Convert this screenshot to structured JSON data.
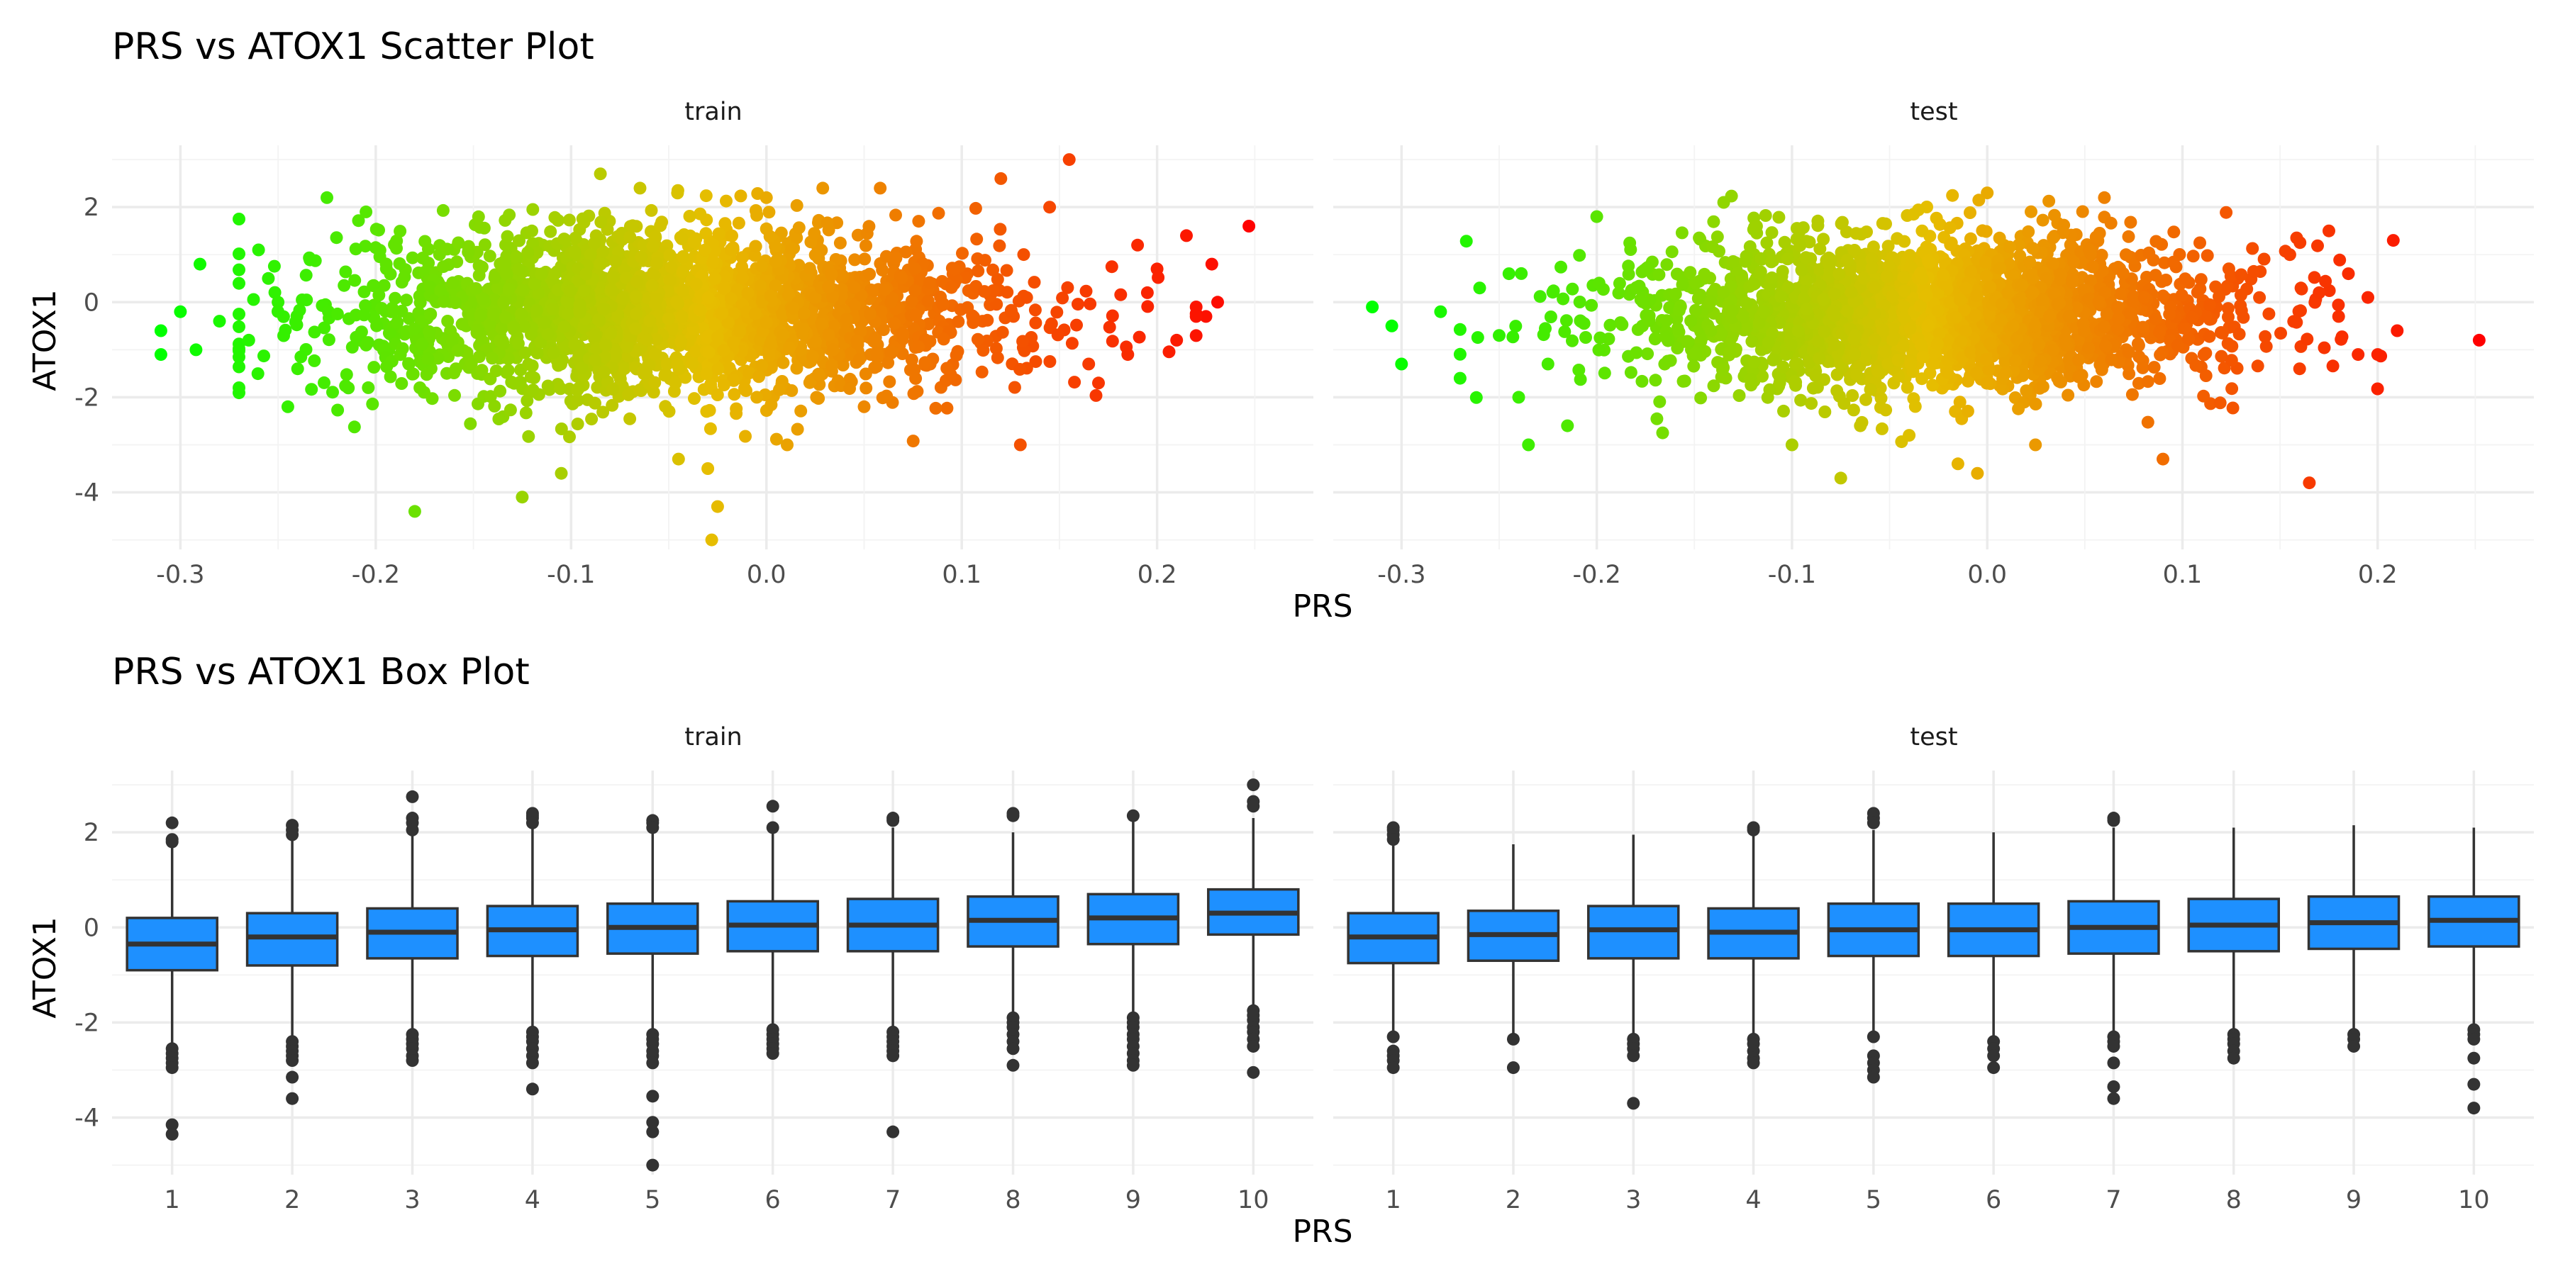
{
  "chart_data": [
    {
      "type": "scatter",
      "title": "PRS vs ATOX1 Scatter Plot",
      "xlabel": "PRS",
      "ylabel": "ATOX1",
      "facets": [
        "train",
        "test"
      ],
      "xlim": [
        -0.335,
        0.28
      ],
      "ylim": [
        -5.2,
        3.3
      ],
      "xticks": [
        -0.3,
        -0.2,
        -0.1,
        0.0,
        0.1,
        0.2
      ],
      "xtick_labels": [
        "-0.3",
        "-0.2",
        "-0.1",
        "0.0",
        "0.1",
        "0.2"
      ],
      "yticks": [
        -4,
        -2,
        0,
        2
      ],
      "ytick_labels": [
        "-4",
        "-2",
        "0",
        "2"
      ],
      "color_gradient": {
        "low": "#00ff00",
        "high": "#ff0000",
        "mapped_to": "PRS"
      },
      "grid": true,
      "legend": "none",
      "clouds": [
        {
          "facet": "train",
          "x_center": -0.05,
          "x_sd": 0.085,
          "y_center": -0.2,
          "y_sd": 0.85
        },
        {
          "facet": "test",
          "x_center": -0.03,
          "x_sd": 0.075,
          "y_center": -0.2,
          "y_sd": 0.8
        }
      ],
      "series": [
        {
          "facet": "train",
          "points": [
            [
              0.247,
              1.6
            ],
            [
              0.231,
              0.0
            ],
            [
              0.225,
              -0.3
            ],
            [
              0.228,
              0.8
            ],
            [
              0.22,
              -0.1
            ],
            [
              0.215,
              1.4
            ],
            [
              0.19,
              1.2
            ],
            [
              0.17,
              -1.7
            ],
            [
              0.165,
              -1.3
            ],
            [
              0.155,
              3.0
            ],
            [
              0.145,
              2.0
            ],
            [
              0.13,
              -3.0
            ],
            [
              0.12,
              2.6
            ],
            [
              0.05,
              -2.2
            ],
            [
              0.0,
              2.2
            ],
            [
              -0.025,
              -4.3
            ],
            [
              -0.028,
              -5.0
            ],
            [
              -0.03,
              -3.5
            ],
            [
              -0.045,
              -3.3
            ],
            [
              -0.085,
              2.7
            ],
            [
              -0.105,
              -3.6
            ],
            [
              -0.125,
              -4.1
            ],
            [
              -0.18,
              -4.4
            ],
            [
              -0.225,
              2.2
            ],
            [
              -0.205,
              1.9
            ],
            [
              -0.26,
              1.1
            ],
            [
              -0.265,
              -0.8
            ],
            [
              -0.27,
              -1.8
            ],
            [
              -0.29,
              0.8
            ],
            [
              -0.292,
              -1.0
            ],
            [
              -0.3,
              -0.2
            ],
            [
              -0.31,
              -0.6
            ],
            [
              -0.31,
              -1.1
            ],
            [
              -0.28,
              -0.4
            ],
            [
              -0.255,
              0.5
            ],
            [
              -0.245,
              -2.2
            ],
            [
              -0.25,
              0.0
            ],
            [
              -0.24,
              -1.4
            ],
            [
              0.22,
              -0.3
            ],
            [
              0.2,
              0.7
            ],
            [
              0.21,
              -0.8
            ],
            [
              0.185,
              -1.1
            ],
            [
              0.195,
              0.2
            ]
          ]
        },
        {
          "facet": "test",
          "points": [
            [
              0.252,
              -0.8
            ],
            [
              0.21,
              -0.6
            ],
            [
              0.208,
              1.3
            ],
            [
              0.2,
              -1.1
            ],
            [
              0.19,
              -1.1
            ],
            [
              0.185,
              0.6
            ],
            [
              0.175,
              1.5
            ],
            [
              0.165,
              -3.8
            ],
            [
              0.155,
              1.0
            ],
            [
              0.09,
              -3.3
            ],
            [
              0.06,
              2.2
            ],
            [
              0.0,
              2.3
            ],
            [
              -0.005,
              -3.6
            ],
            [
              -0.015,
              -3.4
            ],
            [
              -0.04,
              -2.8
            ],
            [
              -0.065,
              -2.6
            ],
            [
              -0.075,
              -3.7
            ],
            [
              -0.1,
              -3.0
            ],
            [
              -0.135,
              2.1
            ],
            [
              -0.2,
              1.8
            ],
            [
              -0.235,
              -3.0
            ],
            [
              -0.225,
              -1.3
            ],
            [
              -0.26,
              0.3
            ],
            [
              -0.27,
              -1.6
            ],
            [
              -0.28,
              -0.2
            ],
            [
              -0.3,
              -1.3
            ],
            [
              -0.305,
              -0.5
            ],
            [
              -0.315,
              -0.1
            ],
            [
              -0.25,
              -0.7
            ],
            [
              -0.245,
              0.6
            ],
            [
              -0.24,
              -2.0
            ],
            [
              -0.215,
              -2.6
            ],
            [
              0.18,
              -0.3
            ],
            [
              0.17,
              0.2
            ],
            [
              0.16,
              -1.4
            ],
            [
              0.195,
              0.1
            ]
          ]
        }
      ]
    },
    {
      "type": "box",
      "title": "PRS vs ATOX1 Box Plot",
      "xlabel": "PRS",
      "ylabel": "ATOX1",
      "facets": [
        "train",
        "test"
      ],
      "categories": [
        "1",
        "2",
        "3",
        "4",
        "5",
        "6",
        "7",
        "8",
        "9",
        "10"
      ],
      "ylim": [
        -5.2,
        3.3
      ],
      "yticks": [
        -4,
        -2,
        0,
        2
      ],
      "ytick_labels": [
        "-4",
        "-2",
        "0",
        "2"
      ],
      "box_fill": "#1e90ff",
      "box_line": "#333333",
      "grid": true,
      "series": [
        {
          "facet": "train",
          "boxes": [
            {
              "q1": -0.9,
              "median": -0.35,
              "q3": 0.2,
              "whisker_low": -2.5,
              "whisker_high": 1.75,
              "outliers": [
                2.2,
                1.85,
                1.8,
                -2.55,
                -2.65,
                -2.75,
                -2.85,
                -2.95,
                -4.15,
                -4.35
              ]
            },
            {
              "q1": -0.8,
              "median": -0.2,
              "q3": 0.3,
              "whisker_low": -2.35,
              "whisker_high": 1.9,
              "outliers": [
                2.15,
                2.05,
                1.95,
                -2.4,
                -2.5,
                -2.6,
                -2.7,
                -2.8,
                -3.15,
                -3.6
              ]
            },
            {
              "q1": -0.65,
              "median": -0.1,
              "q3": 0.4,
              "whisker_low": -2.2,
              "whisker_high": 1.95,
              "outliers": [
                2.75,
                2.3,
                2.2,
                2.05,
                -2.25,
                -2.35,
                -2.45,
                -2.55,
                -2.7,
                -2.8
              ]
            },
            {
              "q1": -0.6,
              "median": -0.05,
              "q3": 0.45,
              "whisker_low": -2.15,
              "whisker_high": 2.1,
              "outliers": [
                2.4,
                2.35,
                2.3,
                2.2,
                -2.2,
                -2.3,
                -2.4,
                -2.55,
                -2.7,
                -2.85,
                -3.4
              ]
            },
            {
              "q1": -0.55,
              "median": 0.0,
              "q3": 0.5,
              "whisker_low": -2.2,
              "whisker_high": 2.05,
              "outliers": [
                2.25,
                2.2,
                2.1,
                -2.25,
                -2.35,
                -2.45,
                -2.6,
                -2.7,
                -2.85,
                -3.55,
                -4.1,
                -4.3,
                -5.0
              ]
            },
            {
              "q1": -0.5,
              "median": 0.05,
              "q3": 0.55,
              "whisker_low": -2.1,
              "whisker_high": 2.0,
              "outliers": [
                2.55,
                2.1,
                -2.15,
                -2.25,
                -2.35,
                -2.45,
                -2.55,
                -2.65
              ]
            },
            {
              "q1": -0.5,
              "median": 0.05,
              "q3": 0.6,
              "whisker_low": -2.15,
              "whisker_high": 2.1,
              "outliers": [
                2.3,
                2.25,
                -2.2,
                -2.3,
                -2.4,
                -2.5,
                -2.6,
                -2.7,
                -4.3
              ]
            },
            {
              "q1": -0.4,
              "median": 0.15,
              "q3": 0.65,
              "whisker_low": -1.85,
              "whisker_high": 2.0,
              "outliers": [
                2.4,
                2.35,
                -1.9,
                -2.0,
                -2.1,
                -2.25,
                -2.4,
                -2.55,
                -2.9
              ]
            },
            {
              "q1": -0.35,
              "median": 0.2,
              "q3": 0.7,
              "whisker_low": -1.85,
              "whisker_high": 2.3,
              "outliers": [
                2.35,
                -1.9,
                -2.0,
                -2.1,
                -2.25,
                -2.35,
                -2.5,
                -2.65,
                -2.8,
                -2.9
              ]
            },
            {
              "q1": -0.15,
              "median": 0.3,
              "q3": 0.8,
              "whisker_low": -1.7,
              "whisker_high": 2.3,
              "outliers": [
                3.0,
                2.65,
                2.55,
                -1.75,
                -1.85,
                -1.95,
                -2.1,
                -2.2,
                -2.35,
                -2.5,
                -3.05
              ]
            }
          ]
        },
        {
          "facet": "test",
          "boxes": [
            {
              "q1": -0.75,
              "median": -0.2,
              "q3": 0.3,
              "whisker_low": -2.2,
              "whisker_high": 1.9,
              "outliers": [
                2.1,
                2.05,
                1.95,
                1.85,
                -2.3,
                -2.6,
                -2.7,
                -2.8,
                -2.95
              ]
            },
            {
              "q1": -0.7,
              "median": -0.15,
              "q3": 0.35,
              "whisker_low": -2.25,
              "whisker_high": 1.75,
              "outliers": [
                -2.35,
                -2.95
              ]
            },
            {
              "q1": -0.65,
              "median": -0.05,
              "q3": 0.45,
              "whisker_low": -2.25,
              "whisker_high": 1.95,
              "outliers": [
                -2.35,
                -2.45,
                -2.55,
                -2.7,
                -3.7
              ]
            },
            {
              "q1": -0.65,
              "median": -0.1,
              "q3": 0.4,
              "whisker_low": -2.25,
              "whisker_high": 1.95,
              "outliers": [
                2.1,
                2.05,
                -2.35,
                -2.45,
                -2.6,
                -2.75,
                -2.85
              ]
            },
            {
              "q1": -0.6,
              "median": -0.05,
              "q3": 0.5,
              "whisker_low": -2.2,
              "whisker_high": 2.05,
              "outliers": [
                2.4,
                2.3,
                2.2,
                -2.3,
                -2.7,
                -2.85,
                -3.0,
                -3.15
              ]
            },
            {
              "q1": -0.6,
              "median": -0.05,
              "q3": 0.5,
              "whisker_low": -2.3,
              "whisker_high": 2.0,
              "outliers": [
                -2.4,
                -2.55,
                -2.7,
                -2.95
              ]
            },
            {
              "q1": -0.55,
              "median": 0.0,
              "q3": 0.55,
              "whisker_low": -2.2,
              "whisker_high": 2.1,
              "outliers": [
                2.3,
                2.25,
                -2.3,
                -2.4,
                -2.5,
                -2.85,
                -3.35,
                -3.6
              ]
            },
            {
              "q1": -0.5,
              "median": 0.05,
              "q3": 0.6,
              "whisker_low": -2.15,
              "whisker_high": 2.1,
              "outliers": [
                -2.25,
                -2.35,
                -2.45,
                -2.6,
                -2.75
              ]
            },
            {
              "q1": -0.45,
              "median": 0.1,
              "q3": 0.65,
              "whisker_low": -2.15,
              "whisker_high": 2.15,
              "outliers": [
                -2.25,
                -2.35,
                -2.5
              ]
            },
            {
              "q1": -0.4,
              "median": 0.15,
              "q3": 0.65,
              "whisker_low": -2.05,
              "whisker_high": 2.1,
              "outliers": [
                -2.15,
                -2.25,
                -2.35,
                -2.75,
                -3.3,
                -3.8
              ]
            }
          ]
        }
      ]
    }
  ]
}
